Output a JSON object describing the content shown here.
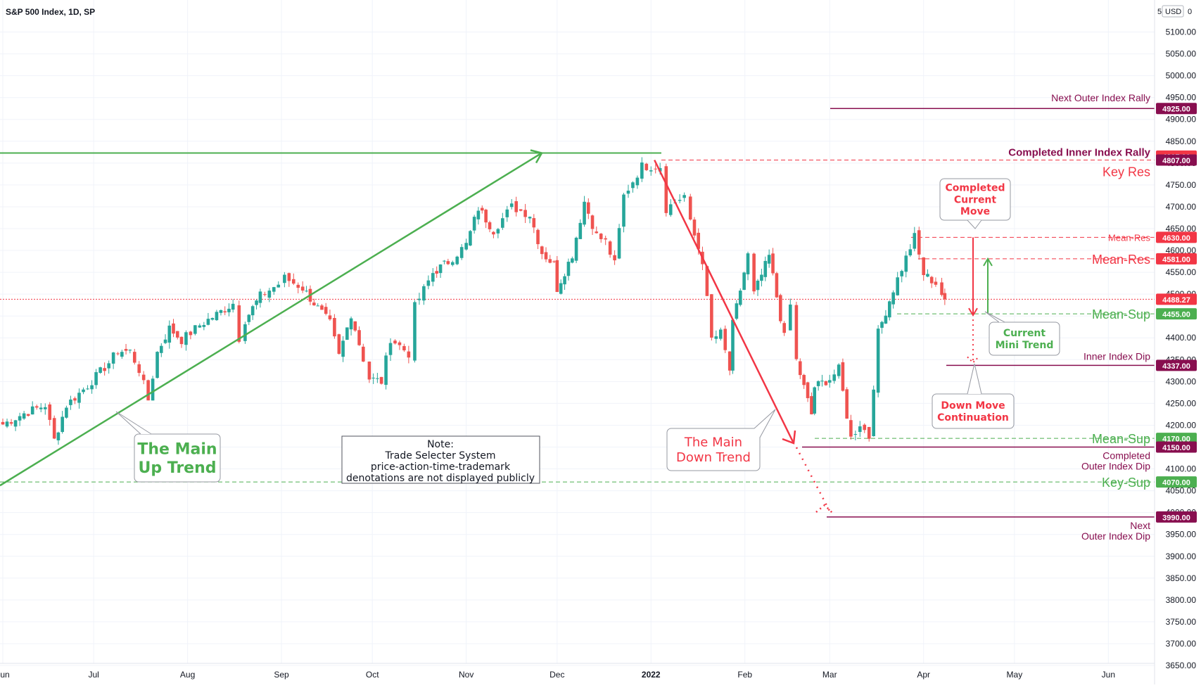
{
  "chart_data": {
    "type": "candlestick",
    "title": "S&P 500 Index, 1D, SP",
    "currency_label": "USD",
    "currency_prefix": "5",
    "y_range": [
      3625,
      5175
    ],
    "y_ticks": [
      3650,
      3700,
      3750,
      3800,
      3850,
      3900,
      3950,
      4000,
      4050,
      4100,
      4150,
      4200,
      4250,
      4300,
      4350,
      4400,
      4450,
      4500,
      4550,
      4600,
      4650,
      4700,
      4750,
      4800,
      4850,
      4900,
      4950,
      5000,
      5050,
      5100
    ],
    "x_labels": [
      {
        "label": "Jun",
        "date": "2021-06-01"
      },
      {
        "label": "Jul",
        "date": "2021-07-01"
      },
      {
        "label": "Aug",
        "date": "2021-08-01"
      },
      {
        "label": "Sep",
        "date": "2021-09-01"
      },
      {
        "label": "Oct",
        "date": "2021-10-01"
      },
      {
        "label": "Nov",
        "date": "2021-11-01"
      },
      {
        "label": "Dec",
        "date": "2021-12-01"
      },
      {
        "label": "2022",
        "date": "2022-01-01",
        "bold": true
      },
      {
        "label": "Feb",
        "date": "2022-02-01"
      },
      {
        "label": "Mar",
        "date": "2022-03-01"
      },
      {
        "label": "Apr",
        "date": "2022-04-01"
      },
      {
        "label": "May",
        "date": "2022-05-01"
      },
      {
        "label": "Jun",
        "date": "2022-06-01"
      }
    ],
    "current_price": 4488.27,
    "closes": [
      {
        "d": "2021-06-01",
        "c": 4202
      },
      {
        "d": "2021-06-08",
        "c": 4227
      },
      {
        "d": "2021-06-15",
        "c": 4246
      },
      {
        "d": "2021-06-18",
        "c": 4166
      },
      {
        "d": "2021-06-22",
        "c": 4246
      },
      {
        "d": "2021-06-29",
        "c": 4291
      },
      {
        "d": "2021-07-06",
        "c": 4343
      },
      {
        "d": "2021-07-09",
        "c": 4370
      },
      {
        "d": "2021-07-13",
        "c": 4369
      },
      {
        "d": "2021-07-16",
        "c": 4327
      },
      {
        "d": "2021-07-19",
        "c": 4258
      },
      {
        "d": "2021-07-22",
        "c": 4367
      },
      {
        "d": "2021-07-26",
        "c": 4422
      },
      {
        "d": "2021-07-30",
        "c": 4395
      },
      {
        "d": "2021-08-05",
        "c": 4429
      },
      {
        "d": "2021-08-12",
        "c": 4460
      },
      {
        "d": "2021-08-16",
        "c": 4479
      },
      {
        "d": "2021-08-18",
        "c": 4400
      },
      {
        "d": "2021-08-20",
        "c": 4441
      },
      {
        "d": "2021-08-25",
        "c": 4496
      },
      {
        "d": "2021-08-31",
        "c": 4523
      },
      {
        "d": "2021-09-02",
        "c": 4537
      },
      {
        "d": "2021-09-08",
        "c": 4514
      },
      {
        "d": "2021-09-13",
        "c": 4468
      },
      {
        "d": "2021-09-17",
        "c": 4433
      },
      {
        "d": "2021-09-20",
        "c": 4358
      },
      {
        "d": "2021-09-24",
        "c": 4455
      },
      {
        "d": "2021-09-28",
        "c": 4352
      },
      {
        "d": "2021-09-30",
        "c": 4307
      },
      {
        "d": "2021-10-04",
        "c": 4300
      },
      {
        "d": "2021-10-07",
        "c": 4399
      },
      {
        "d": "2021-10-13",
        "c": 4364
      },
      {
        "d": "2021-10-15",
        "c": 4471
      },
      {
        "d": "2021-10-21",
        "c": 4549
      },
      {
        "d": "2021-10-26",
        "c": 4574
      },
      {
        "d": "2021-11-01",
        "c": 4613
      },
      {
        "d": "2021-11-05",
        "c": 4697
      },
      {
        "d": "2021-11-10",
        "c": 4646
      },
      {
        "d": "2021-11-16",
        "c": 4700
      },
      {
        "d": "2021-11-22",
        "c": 4682
      },
      {
        "d": "2021-11-26",
        "c": 4595
      },
      {
        "d": "2021-11-30",
        "c": 4567
      },
      {
        "d": "2021-12-01",
        "c": 4513
      },
      {
        "d": "2021-12-06",
        "c": 4591
      },
      {
        "d": "2021-12-10",
        "c": 4712
      },
      {
        "d": "2021-12-14",
        "c": 4634
      },
      {
        "d": "2021-12-17",
        "c": 4620
      },
      {
        "d": "2021-12-20",
        "c": 4568
      },
      {
        "d": "2021-12-23",
        "c": 4725
      },
      {
        "d": "2021-12-29",
        "c": 4793
      },
      {
        "d": "2022-01-04",
        "c": 4793
      },
      {
        "d": "2022-01-06",
        "c": 4696
      },
      {
        "d": "2022-01-12",
        "c": 4726
      },
      {
        "d": "2022-01-14",
        "c": 4662
      },
      {
        "d": "2022-01-18",
        "c": 4577
      },
      {
        "d": "2022-01-21",
        "c": 4397
      },
      {
        "d": "2022-01-24",
        "c": 4410
      },
      {
        "d": "2022-01-27",
        "c": 4326
      },
      {
        "d": "2022-01-28",
        "c": 4431
      },
      {
        "d": "2022-02-02",
        "c": 4589
      },
      {
        "d": "2022-02-04",
        "c": 4500
      },
      {
        "d": "2022-02-09",
        "c": 4587
      },
      {
        "d": "2022-02-14",
        "c": 4401
      },
      {
        "d": "2022-02-16",
        "c": 4475
      },
      {
        "d": "2022-02-18",
        "c": 4348
      },
      {
        "d": "2022-02-23",
        "c": 4225
      },
      {
        "d": "2022-02-24",
        "c": 4288
      },
      {
        "d": "2022-03-01",
        "c": 4306
      },
      {
        "d": "2022-03-04",
        "c": 4328
      },
      {
        "d": "2022-03-08",
        "c": 4170
      },
      {
        "d": "2022-03-11",
        "c": 4204
      },
      {
        "d": "2022-03-14",
        "c": 4173
      },
      {
        "d": "2022-03-17",
        "c": 4411
      },
      {
        "d": "2022-03-22",
        "c": 4511
      },
      {
        "d": "2022-03-29",
        "c": 4631
      },
      {
        "d": "2022-04-01",
        "c": 4546
      },
      {
        "d": "2022-04-05",
        "c": 4525
      },
      {
        "d": "2022-04-07",
        "c": 4500
      },
      {
        "d": "2022-04-08",
        "c": 4488
      }
    ],
    "levels": [
      {
        "label": "Next Outer Index Rally",
        "value": 4925.0,
        "color": "#880e4f",
        "style": "solid"
      },
      {
        "label": "Completed Inner Index Rally",
        "value": 4807.0,
        "color": "#880e4f",
        "style": "solid"
      },
      {
        "label": "Key Res",
        "value": 4807.0,
        "color": "#f23645",
        "style": "dashed"
      },
      {
        "label": "Mean-Res",
        "value": 4630.0,
        "color": "#f23645",
        "style": "dashed"
      },
      {
        "label": "Mean-Res",
        "value": 4581.0,
        "color": "#f23645",
        "style": "dashed"
      },
      {
        "label": "Mean-Sup",
        "value": 4455.0,
        "color": "#4caf50",
        "style": "dashed"
      },
      {
        "label": "Inner Index Dip",
        "value": 4337.0,
        "color": "#880e4f",
        "style": "solid"
      },
      {
        "label": "Mean-Sup",
        "value": 4170.0,
        "color": "#4caf50",
        "style": "dashed"
      },
      {
        "label": "Completed Outer Index Dip",
        "value": 4150.0,
        "color": "#880e4f",
        "style": "solid"
      },
      {
        "label": "Key-Sup",
        "value": 4070.0,
        "color": "#4caf50",
        "style": "dashed"
      },
      {
        "label": "Next Outer Index Dip",
        "value": 3990.0,
        "color": "#880e4f",
        "style": "solid"
      }
    ],
    "badges": [
      {
        "value": "4925.00",
        "y": 4925,
        "bg": "#880e4f"
      },
      {
        "value": "4807.00",
        "y": 4816,
        "bg": "#f23645"
      },
      {
        "value": "4807.00",
        "y": 4807,
        "bg": "#880e4f"
      },
      {
        "value": "4630.00",
        "y": 4630,
        "bg": "#f23645"
      },
      {
        "value": "4581.00",
        "y": 4581,
        "bg": "#f23645"
      },
      {
        "value": "4488.27",
        "y": 4488.27,
        "bg": "#f23645"
      },
      {
        "value": "4455.00",
        "y": 4455,
        "bg": "#4caf50"
      },
      {
        "value": "4337.00",
        "y": 4337,
        "bg": "#880e4f"
      },
      {
        "value": "4170.00",
        "y": 4170,
        "bg": "#4caf50"
      },
      {
        "value": "4150.00",
        "y": 4150,
        "bg": "#880e4f"
      },
      {
        "value": "4070.00",
        "y": 4070,
        "bg": "#4caf50"
      },
      {
        "value": "3990.00",
        "y": 3990,
        "bg": "#880e4f"
      }
    ],
    "trend_up": {
      "from": {
        "d": "2021-05-31",
        "v": 4062
      },
      "to": {
        "d": "2021-12-01",
        "v": 4807
      },
      "color": "#4caf50"
    },
    "trend_down": {
      "from": {
        "d": "2022-01-04",
        "v": 4807
      },
      "to": {
        "d": "2022-02-24",
        "v": 4143
      },
      "color": "#f23645"
    }
  },
  "annotations": {
    "up_trend": [
      "The Main",
      "Up Trend"
    ],
    "down_trend": [
      "The Main",
      "Down Trend"
    ],
    "note": [
      "Note:",
      "Trade Selecter System",
      "price-action-time-trademark",
      "denotations are not displayed publicly"
    ],
    "completed_move": [
      "Completed",
      "Current",
      "Move"
    ],
    "mini_trend": [
      "Current",
      "Mini Trend"
    ],
    "down_continuation": [
      "Down Move",
      "Continuation"
    ]
  },
  "colors": {
    "up": "#26a69a",
    "down": "#ef5350",
    "green": "#4caf50",
    "red": "#f23645",
    "maroon": "#880e4f"
  }
}
